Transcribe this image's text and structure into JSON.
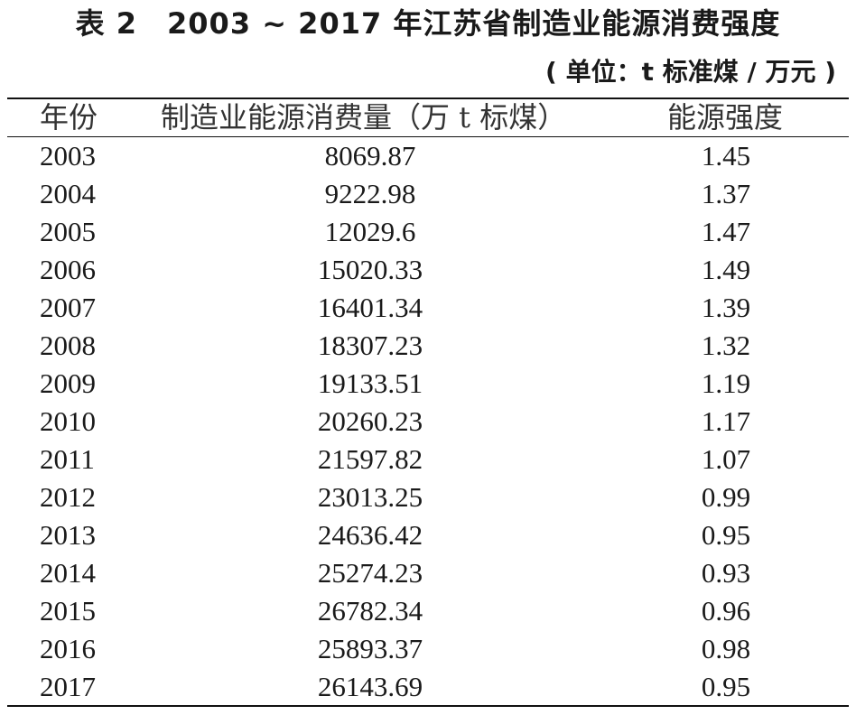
{
  "title": "表 2　2003 ~ 2017 年江苏省制造业能源消费强度",
  "unit": "( 单位：t 标准煤 / 万元 )",
  "table": {
    "headers": [
      "年份",
      "制造业能源消费量（万 t 标煤）",
      "能源强度"
    ],
    "rows": [
      {
        "year": "2003",
        "consumption": "8069.87",
        "intensity": "1.45"
      },
      {
        "year": "2004",
        "consumption": "9222.98",
        "intensity": "1.37"
      },
      {
        "year": "2005",
        "consumption": "12029.6",
        "intensity": "1.47"
      },
      {
        "year": "2006",
        "consumption": "15020.33",
        "intensity": "1.49"
      },
      {
        "year": "2007",
        "consumption": "16401.34",
        "intensity": "1.39"
      },
      {
        "year": "2008",
        "consumption": "18307.23",
        "intensity": "1.32"
      },
      {
        "year": "2009",
        "consumption": "19133.51",
        "intensity": "1.19"
      },
      {
        "year": "2010",
        "consumption": "20260.23",
        "intensity": "1.17"
      },
      {
        "year": "2011",
        "consumption": "21597.82",
        "intensity": "1.07"
      },
      {
        "year": "2012",
        "consumption": "23013.25",
        "intensity": "0.99"
      },
      {
        "year": "2013",
        "consumption": "24636.42",
        "intensity": "0.95"
      },
      {
        "year": "2014",
        "consumption": "25274.23",
        "intensity": "0.93"
      },
      {
        "year": "2015",
        "consumption": "26782.34",
        "intensity": "0.96"
      },
      {
        "year": "2016",
        "consumption": "25893.37",
        "intensity": "0.98"
      },
      {
        "year": "2017",
        "consumption": "26143.69",
        "intensity": "0.95"
      }
    ]
  }
}
